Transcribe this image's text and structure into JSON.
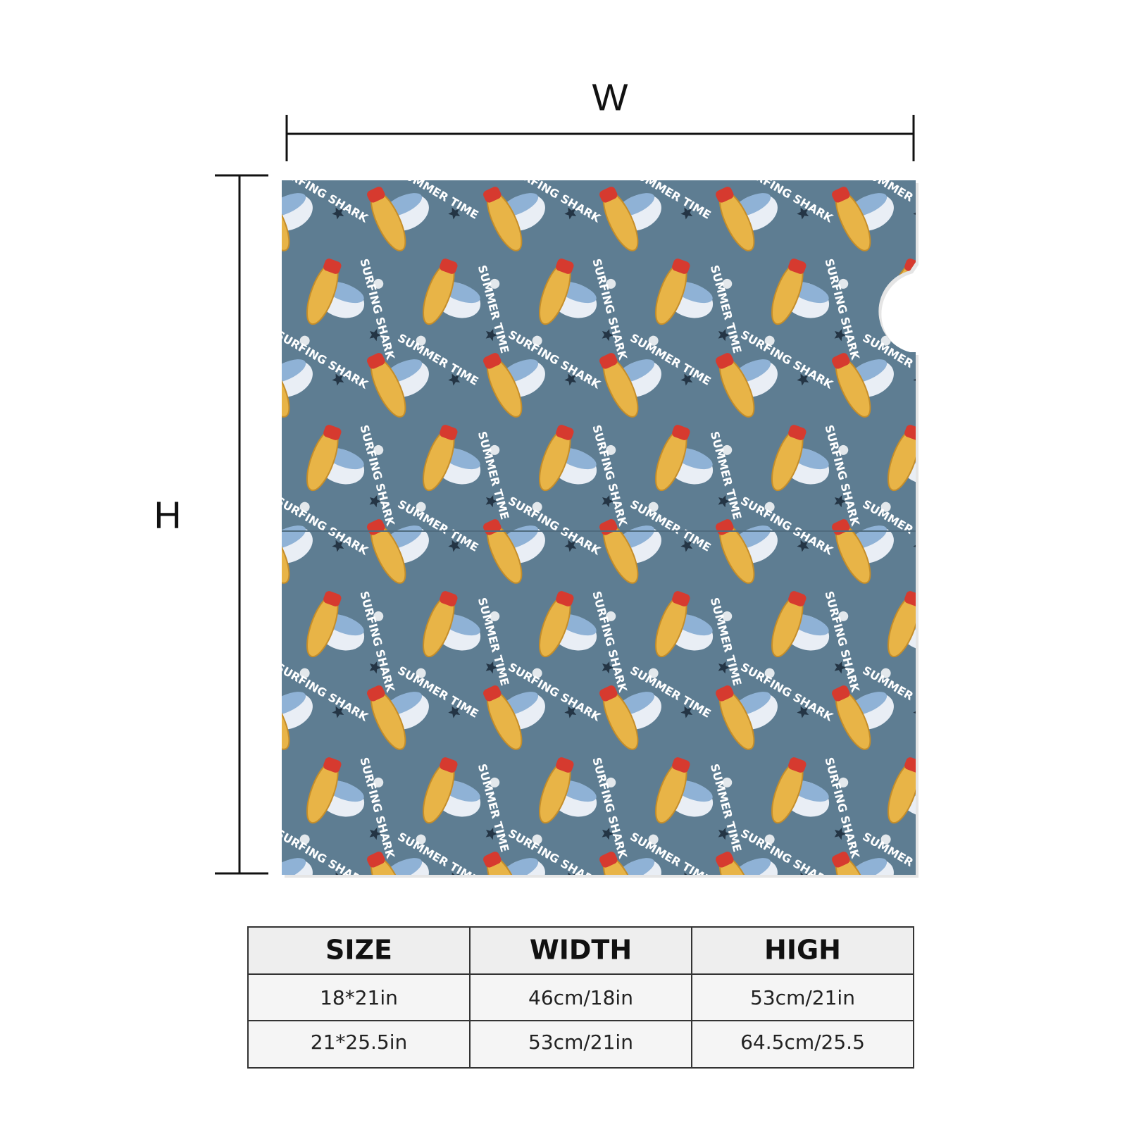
{
  "dimensions": {
    "width_label": "W",
    "height_label": "H"
  },
  "pattern": {
    "texts": [
      "SURFING SHARK",
      "SUMMER TIME"
    ]
  },
  "table": {
    "header": [
      "SIZE",
      "WIDTH",
      "HIGH"
    ],
    "rows": [
      [
        "18*21in",
        "46cm/18in",
        "53cm/21in"
      ],
      [
        "21*25.5in",
        "53cm/21in",
        "64.5cm/25.5"
      ]
    ]
  }
}
